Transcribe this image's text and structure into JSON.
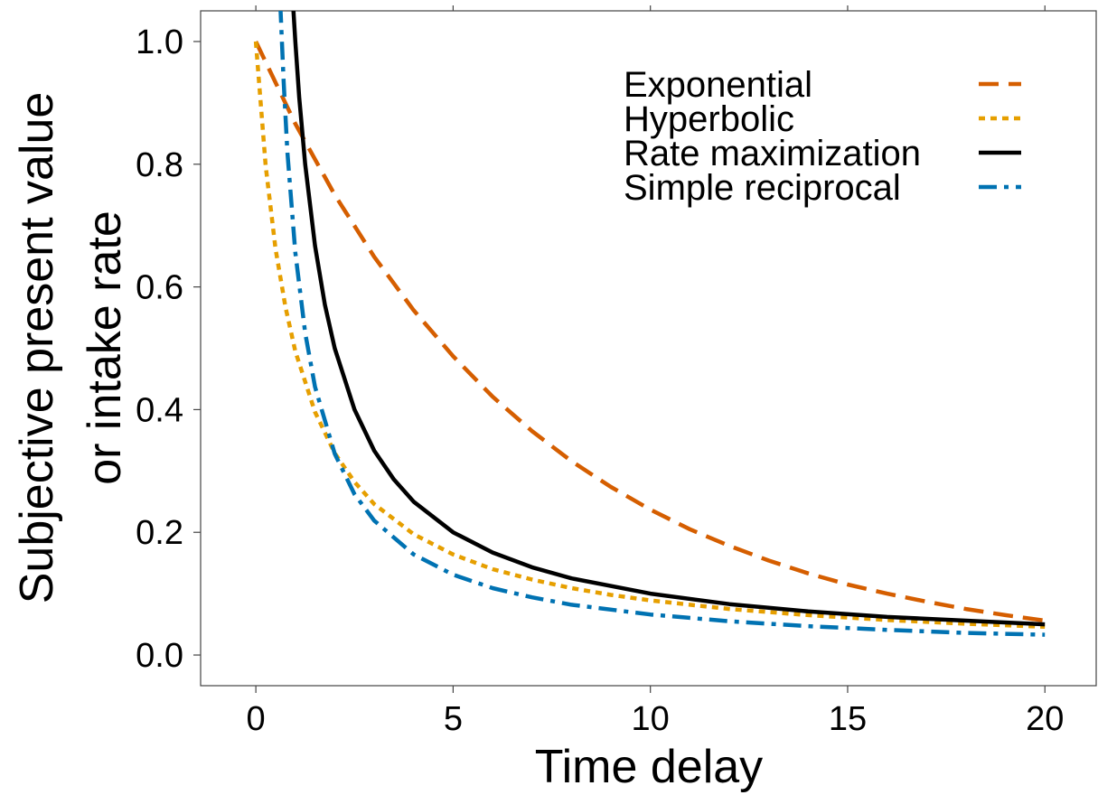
{
  "chart_data": {
    "type": "line",
    "xlabel": "Time delay",
    "ylabel_lines": [
      "Subjective present value",
      "or intake rate"
    ],
    "xlim": [
      -1.4,
      21.3
    ],
    "ylim": [
      -0.05,
      1.05
    ],
    "xticks": [
      0,
      5,
      10,
      15,
      20
    ],
    "yticks": [
      0.0,
      0.2,
      0.4,
      0.6,
      0.8,
      1.0
    ],
    "xtick_labels": [
      "0",
      "5",
      "10",
      "15",
      "20"
    ],
    "ytick_labels": [
      "0.0",
      "0.2",
      "0.4",
      "0.6",
      "0.8",
      "1.0"
    ],
    "grid": false,
    "legend_position": "top-right",
    "series": [
      {
        "name": "Exponential",
        "color": "#D55E00",
        "dash": "dashed",
        "x": [
          0,
          1,
          2,
          3,
          4,
          5,
          6,
          7,
          8,
          9,
          10,
          11,
          12,
          13,
          14,
          15,
          16,
          17,
          18,
          19,
          20
        ],
        "y": [
          1.0,
          0.866,
          0.75,
          0.649,
          0.562,
          0.487,
          0.421,
          0.365,
          0.316,
          0.274,
          0.237,
          0.205,
          0.178,
          0.154,
          0.133,
          0.115,
          0.1,
          0.087,
          0.075,
          0.065,
          0.056
        ]
      },
      {
        "name": "Hyperbolic",
        "color": "#E69F00",
        "dash": "dotted",
        "x": [
          0,
          0.25,
          0.5,
          0.75,
          1,
          1.5,
          2,
          2.5,
          3,
          4,
          5,
          6,
          7,
          8,
          9,
          10,
          12,
          14,
          16,
          18,
          20
        ],
        "y": [
          1.0,
          0.797,
          0.662,
          0.567,
          0.495,
          0.396,
          0.329,
          0.282,
          0.246,
          0.197,
          0.164,
          0.14,
          0.123,
          0.109,
          0.098,
          0.089,
          0.075,
          0.065,
          0.057,
          0.051,
          0.046
        ]
      },
      {
        "name": "Rate maximization",
        "color": "#000000",
        "dash": "solid",
        "x": [
          0.95,
          1,
          1.1,
          1.25,
          1.5,
          1.75,
          2,
          2.5,
          3,
          3.5,
          4,
          5,
          6,
          7,
          8,
          10,
          12,
          14,
          16,
          18,
          20
        ],
        "y": [
          1.053,
          1.0,
          0.909,
          0.8,
          0.667,
          0.571,
          0.5,
          0.4,
          0.333,
          0.286,
          0.25,
          0.2,
          0.167,
          0.143,
          0.125,
          0.1,
          0.083,
          0.071,
          0.062,
          0.056,
          0.05
        ]
      },
      {
        "name": "Simple reciprocal",
        "color": "#0072B2",
        "dash": "dashdot",
        "x": [
          0.62,
          0.7,
          0.8,
          1,
          1.25,
          1.5,
          2,
          2.5,
          3,
          4,
          5,
          6,
          7,
          8,
          10,
          12,
          14,
          16,
          18,
          20
        ],
        "y": [
          1.06,
          0.94,
          0.82,
          0.656,
          0.525,
          0.437,
          0.328,
          0.262,
          0.219,
          0.164,
          0.131,
          0.109,
          0.094,
          0.082,
          0.066,
          0.055,
          0.047,
          0.041,
          0.036,
          0.033
        ]
      }
    ]
  }
}
